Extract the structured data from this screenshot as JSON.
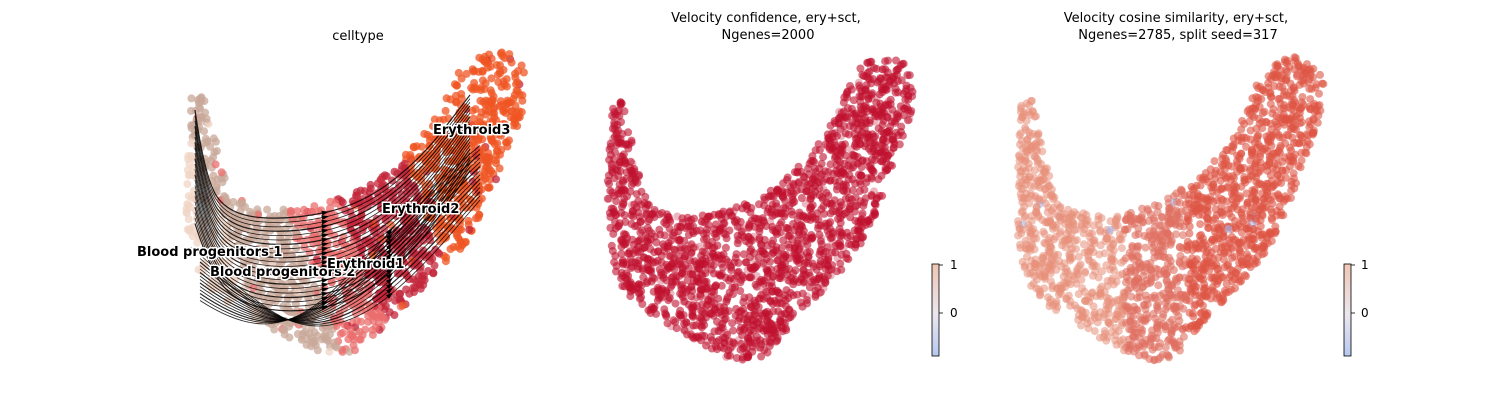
{
  "chart_data": [
    {
      "type": "scatter",
      "variant": "embedding-with-velocity-streamlines",
      "title": "celltype",
      "colored_by": "celltype",
      "categories": [
        {
          "name": "Blood progenitors 1",
          "color": "#f0d5c6"
        },
        {
          "name": "Blood progenitors 2",
          "color": "#c8a89a"
        },
        {
          "name": "Erythroid1",
          "color": "#eb6e6e"
        },
        {
          "name": "Erythroid2",
          "color": "#c3263a"
        },
        {
          "name": "Erythroid3",
          "color": "#ef5523"
        }
      ],
      "streamlines": true,
      "axes_visible": false,
      "grid": false
    },
    {
      "type": "scatter",
      "variant": "embedding-continuous",
      "title": "Velocity confidence, ery+sct,\n Ngenes=2000",
      "colormap": "coolwarm",
      "point_color": "#c0102f",
      "colorbar": {
        "ticks": [
          {
            "value": 0,
            "label": "0"
          },
          {
            "value": 1,
            "label": "1"
          }
        ],
        "vmin": -0.85,
        "vmax": 1
      },
      "axes_visible": false,
      "grid": false
    },
    {
      "type": "scatter",
      "variant": "embedding-continuous",
      "title": "Velocity cosine similarity, ery+sct,\n Ngenes=2785, split seed=317",
      "colormap": "coolwarm",
      "point_color": "#dd5544",
      "colorbar": {
        "ticks": [
          {
            "value": 0,
            "label": "0"
          },
          {
            "value": 1,
            "label": "1"
          }
        ],
        "vmin": -0.85,
        "vmax": 1
      },
      "axes_visible": false,
      "grid": false
    }
  ]
}
